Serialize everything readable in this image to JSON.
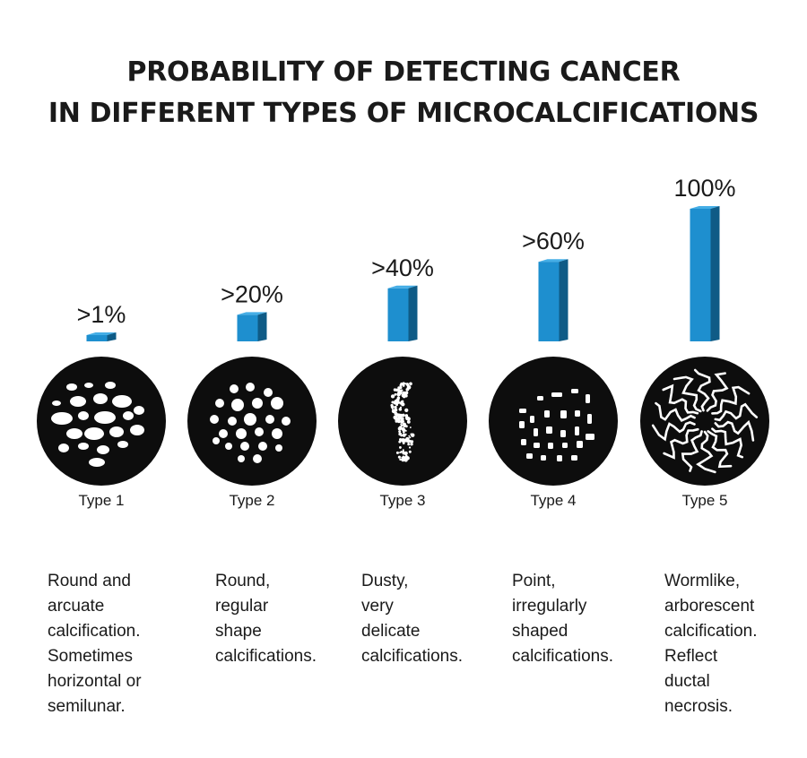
{
  "title_lines": [
    "PROBABILITY OF DETECTING CANCER",
    "IN DIFFERENT TYPES OF MICROCALCIFICATIONS"
  ],
  "colors": {
    "bar_front": "#1e8fcf",
    "bar_side": "#0f5b86",
    "bar_top": "#45aee6",
    "circle": "#0d0d0d",
    "calcification": "#ffffff"
  },
  "chart_data": {
    "type": "bar",
    "categories": [
      "Type 1",
      "Type 2",
      "Type 3",
      "Type 4",
      "Type 5"
    ],
    "values": [
      1,
      20,
      40,
      60,
      100
    ],
    "value_labels": [
      ">1%",
      ">20%",
      ">40%",
      ">60%",
      "100%"
    ],
    "ylim": [
      0,
      100
    ],
    "grid": false,
    "descriptions": [
      [
        "Round and",
        "arcuate",
        "calcification.",
        "Sometimes",
        "horizontal or",
        "semilunar."
      ],
      [
        "Round,",
        "regular",
        "shape",
        "calcifications."
      ],
      [
        "Dusty,",
        "very",
        "delicate",
        "calcifications."
      ],
      [
        "Point,",
        "irregularly",
        "shaped",
        "calcifications."
      ],
      [
        "Wormlike,",
        "arborescent",
        "calcification.",
        "Reflect",
        "ductal",
        "necrosis."
      ]
    ]
  }
}
